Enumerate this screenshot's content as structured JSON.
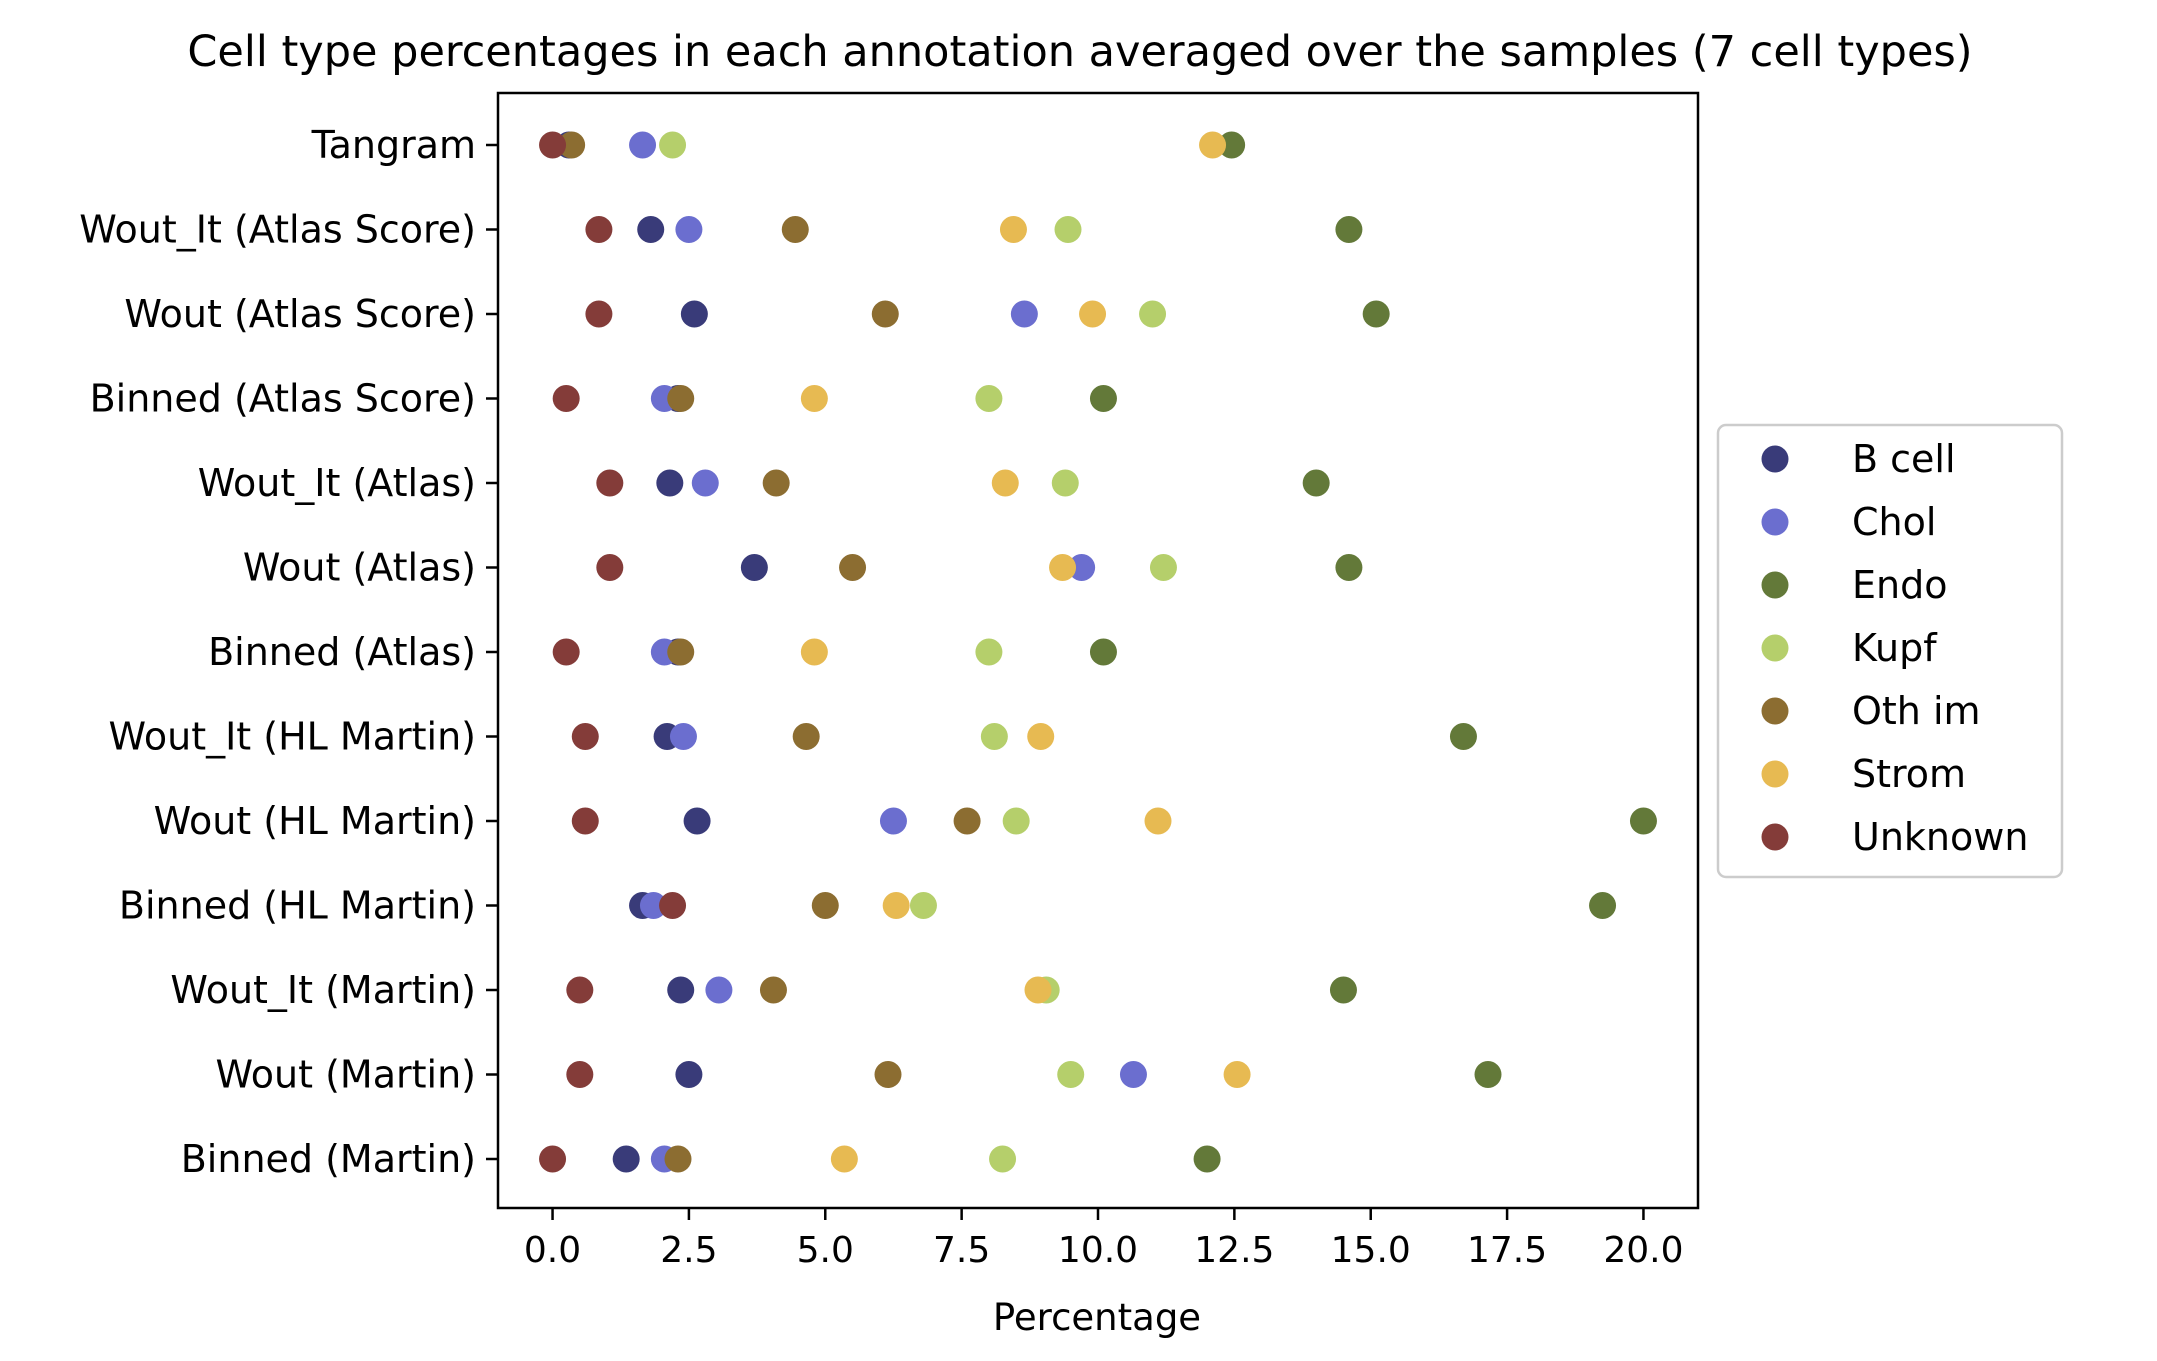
{
  "chart_data": {
    "type": "scatter",
    "title": "Cell type percentages in each annotation averaged over the samples (7 cell types)",
    "xlabel": "Percentage",
    "ylabel": "",
    "xlim": [
      -1.0,
      21.0
    ],
    "xticks": [
      "0.0",
      "2.5",
      "5.0",
      "7.5",
      "10.0",
      "12.5",
      "15.0",
      "17.5",
      "20.0"
    ],
    "xtick_values": [
      0,
      2.5,
      5,
      7.5,
      10,
      12.5,
      15,
      17.5,
      20
    ],
    "grid": false,
    "legend_position": "right",
    "categories": [
      "Tangram",
      "Wout_It (Atlas Score)",
      "Wout (Atlas Score)",
      "Binned (Atlas Score)",
      "Wout_It (Atlas)",
      "Wout (Atlas)",
      "Binned (Atlas)",
      "Wout_It (HL Martin)",
      "Wout (HL Martin)",
      "Binned (HL Martin)",
      "Wout_It (Martin)",
      "Wout (Martin)",
      "Binned (Martin)"
    ],
    "series": [
      {
        "name": "B cell",
        "color": "#393b79",
        "values": [
          0.3,
          1.8,
          2.6,
          2.3,
          2.15,
          3.7,
          2.3,
          2.1,
          2.65,
          1.65,
          2.35,
          2.5,
          1.35
        ]
      },
      {
        "name": "Chol",
        "color": "#6b6ecf",
        "values": [
          1.65,
          2.5,
          8.65,
          2.05,
          2.8,
          9.7,
          2.05,
          2.4,
          6.25,
          1.85,
          3.05,
          10.65,
          2.05
        ]
      },
      {
        "name": "Endo",
        "color": "#637939",
        "values": [
          12.45,
          14.6,
          15.1,
          10.1,
          14.0,
          14.6,
          10.1,
          16.7,
          20.0,
          19.25,
          14.5,
          17.15,
          12.0
        ]
      },
      {
        "name": "Kupf",
        "color": "#b5cf6b",
        "values": [
          2.2,
          9.45,
          11.0,
          8.0,
          9.4,
          11.2,
          8.0,
          8.1,
          8.5,
          6.8,
          9.05,
          9.5,
          8.25
        ]
      },
      {
        "name": "Oth im",
        "color": "#8c6d31",
        "values": [
          0.35,
          4.45,
          6.1,
          2.35,
          4.1,
          5.5,
          2.35,
          4.65,
          7.6,
          5.0,
          4.05,
          6.15,
          2.3
        ]
      },
      {
        "name": "Strom",
        "color": "#e7ba52",
        "values": [
          12.1,
          8.45,
          9.9,
          4.8,
          8.3,
          9.35,
          4.8,
          8.95,
          11.1,
          6.3,
          8.9,
          12.55,
          5.35
        ]
      },
      {
        "name": "Unknown",
        "color": "#843c39",
        "values": [
          0.0,
          0.85,
          0.85,
          0.25,
          1.05,
          1.05,
          0.25,
          0.6,
          0.6,
          2.2,
          0.5,
          0.5,
          0.0
        ]
      }
    ]
  }
}
